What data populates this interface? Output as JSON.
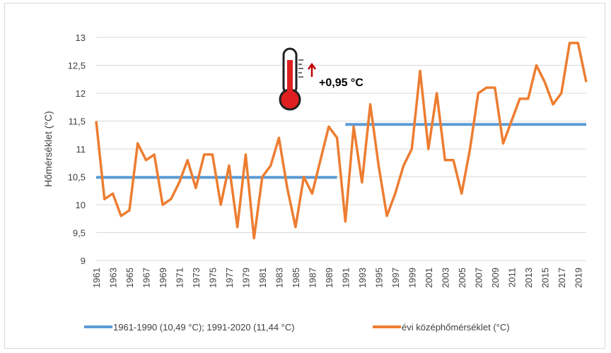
{
  "chart_data": {
    "type": "line",
    "title": "",
    "ylabel": "Hőmérséklet (°C)",
    "xlabel": "",
    "ylim": [
      9,
      13
    ],
    "yticks": [
      "9",
      "9,5",
      "10",
      "10,5",
      "11",
      "11,5",
      "12",
      "12,5",
      "13"
    ],
    "xticks": [
      "1961",
      "1963",
      "1965",
      "1967",
      "1969",
      "1971",
      "1973",
      "1975",
      "1977",
      "1979",
      "1981",
      "1983",
      "1985",
      "1987",
      "1989",
      "1991",
      "1993",
      "1995",
      "1997",
      "1999",
      "2001",
      "2003",
      "2005",
      "2007",
      "2009",
      "2011",
      "2013",
      "2015",
      "2017",
      "2019"
    ],
    "grid": true,
    "legend_position": "bottom",
    "x": [
      1961,
      1962,
      1963,
      1964,
      1965,
      1966,
      1967,
      1968,
      1969,
      1970,
      1971,
      1972,
      1973,
      1974,
      1975,
      1976,
      1977,
      1978,
      1979,
      1980,
      1981,
      1982,
      1983,
      1984,
      1985,
      1986,
      1987,
      1988,
      1989,
      1990,
      1991,
      1992,
      1993,
      1994,
      1995,
      1996,
      1997,
      1998,
      1999,
      2000,
      2001,
      2002,
      2003,
      2004,
      2005,
      2006,
      2007,
      2008,
      2009,
      2010,
      2011,
      2012,
      2013,
      2014,
      2015,
      2016,
      2017,
      2018,
      2019,
      2020
    ],
    "series": [
      {
        "name": "évi középhőmérséklet (°C)",
        "color": "#ed7d31",
        "values": [
          11.5,
          10.1,
          10.2,
          9.8,
          9.9,
          11.1,
          10.8,
          10.9,
          10.0,
          10.1,
          10.4,
          10.8,
          10.3,
          10.9,
          10.9,
          10.0,
          10.7,
          9.6,
          10.9,
          9.4,
          10.5,
          10.7,
          11.2,
          10.3,
          9.6,
          10.5,
          10.2,
          10.8,
          11.4,
          11.2,
          9.7,
          11.4,
          10.4,
          11.8,
          10.7,
          9.8,
          10.2,
          10.7,
          11.0,
          12.4,
          11.0,
          12.0,
          10.8,
          10.8,
          10.2,
          11.0,
          12.0,
          12.1,
          12.1,
          11.1,
          11.5,
          11.9,
          11.9,
          12.5,
          12.2,
          11.8,
          12.0,
          12.9,
          12.9,
          12.2
        ]
      }
    ],
    "reference_lines": {
      "name": "1961-1990 (10,49 °C); 1991-2020 (11,44 °C)",
      "color": "#5b9bd5",
      "segments": [
        {
          "from": 1961,
          "to": 1990,
          "value": 10.49
        },
        {
          "from": 1991,
          "to": 2020,
          "value": 11.44
        }
      ]
    },
    "annotation": {
      "text": "+0,95 °C",
      "icon": "thermometer-icon",
      "arrow_color": "#c00000",
      "thermometer_color": "#e02020"
    }
  }
}
